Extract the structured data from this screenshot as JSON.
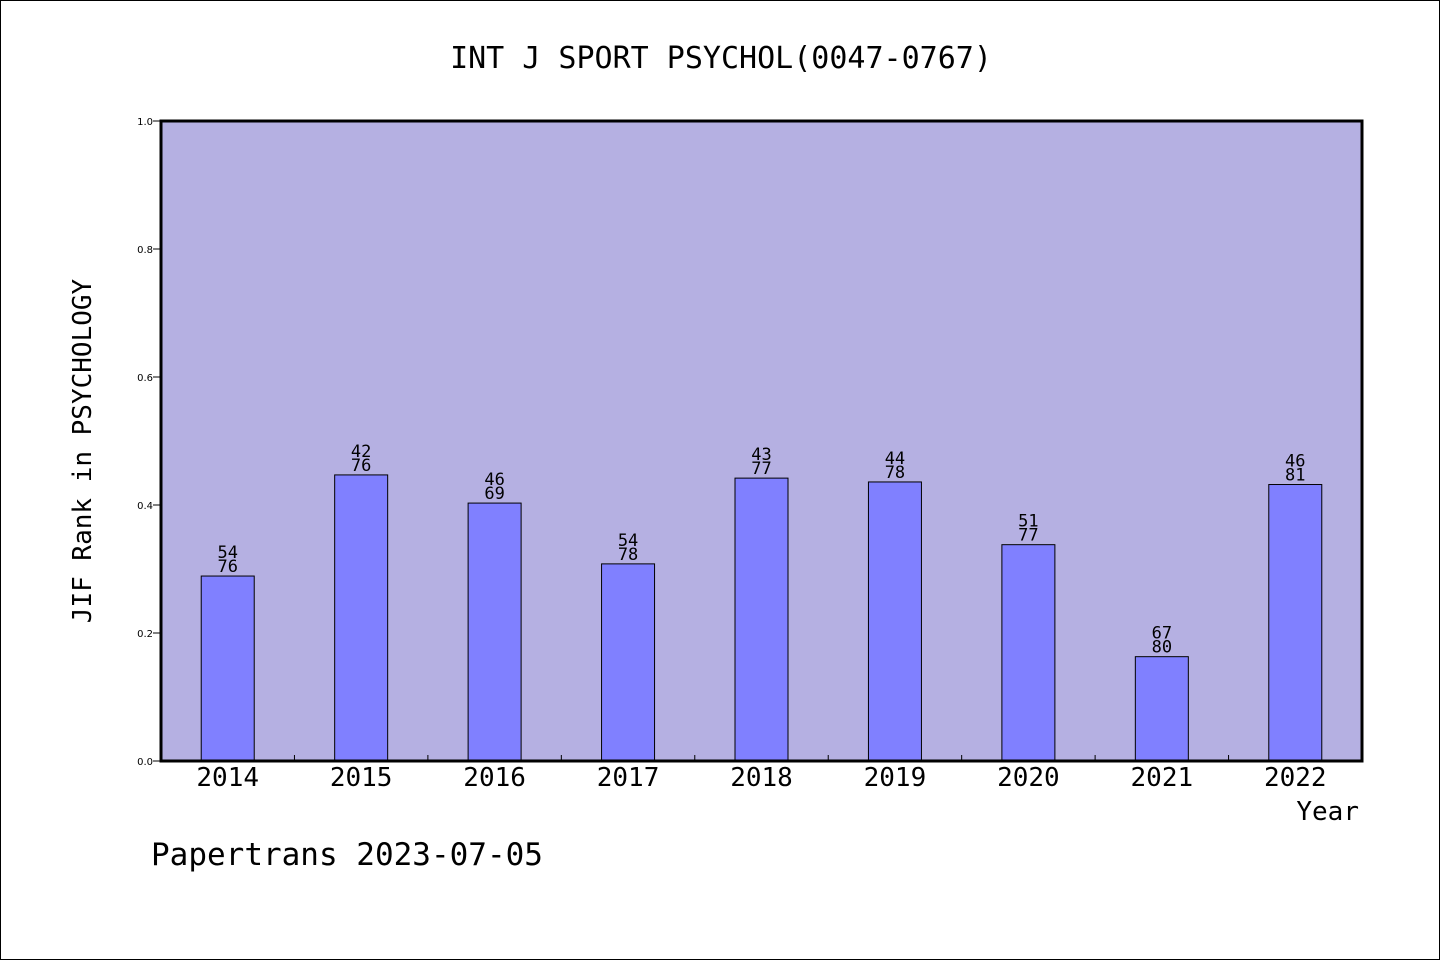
{
  "chart_data": {
    "type": "bar",
    "title": "INT J SPORT PSYCHOL(0047-0767)",
    "xlabel": "Year",
    "ylabel": "JIF Rank in PSYCHOLOGY",
    "categories": [
      "2014",
      "2015",
      "2016",
      "2017",
      "2018",
      "2019",
      "2020",
      "2021",
      "2022"
    ],
    "values": [
      0.289,
      0.447,
      0.403,
      0.308,
      0.442,
      0.436,
      0.338,
      0.163,
      0.432
    ],
    "labels_top": [
      "54",
      "42",
      "46",
      "54",
      "43",
      "44",
      "51",
      "67",
      "46"
    ],
    "labels_bottom": [
      "76",
      "76",
      "69",
      "78",
      "77",
      "78",
      "77",
      "80",
      "81"
    ],
    "ylim": [
      0,
      1
    ],
    "yticks": [
      "0.0",
      "0.2",
      "0.4",
      "0.6",
      "0.8",
      "1.0"
    ],
    "grid": false,
    "colors": {
      "plot_bg": "#b5b0e2",
      "bar": "#8080ff",
      "axis": "#000000"
    }
  },
  "footer": {
    "text": "Papertrans 2023-07-05"
  }
}
